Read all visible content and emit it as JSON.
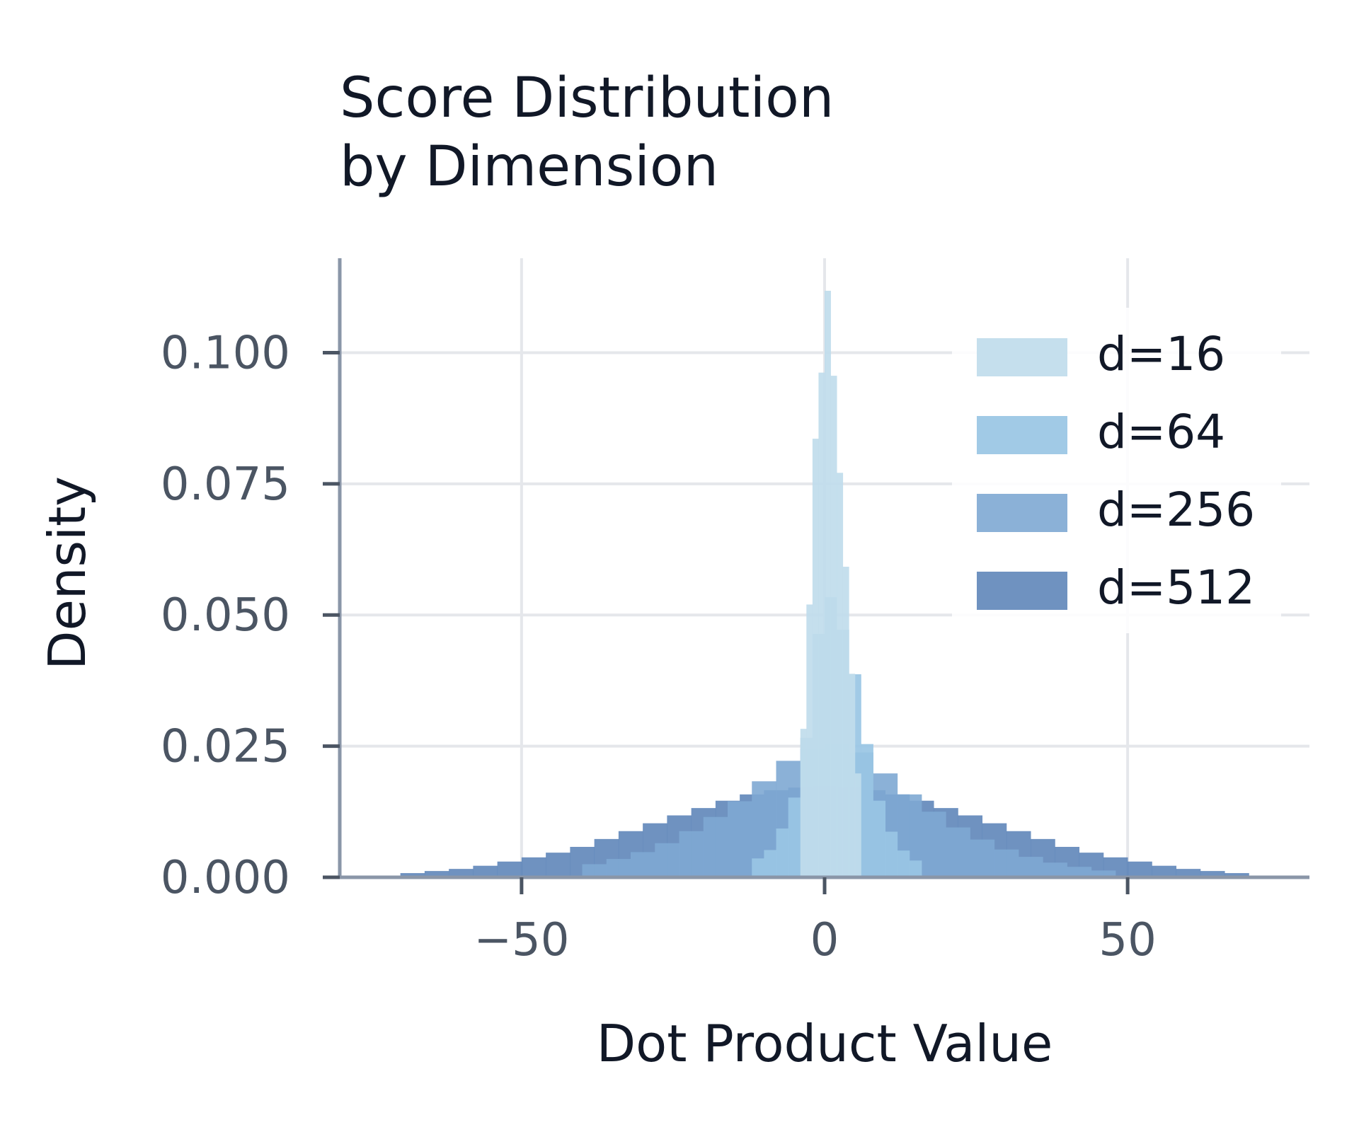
{
  "chart_data": {
    "type": "bar",
    "title": "Score Distribution\nby Dimension",
    "xlabel": "Dot Product Value",
    "ylabel": "Density",
    "xlim": [
      -80,
      80
    ],
    "ylim": [
      0,
      0.118
    ],
    "xticks": [
      -50,
      0,
      50
    ],
    "xtick_labels": [
      "−50",
      "0",
      "50"
    ],
    "yticks": [
      0,
      0.025,
      0.05,
      0.075,
      0.1
    ],
    "ytick_labels": [
      "0.000",
      "0.025",
      "0.050",
      "0.075",
      "0.100"
    ],
    "grid": true,
    "legend_position": "top-right",
    "series": [
      {
        "name": "d=512",
        "color": "#5b83b7",
        "opacity": 0.88,
        "bins": [
          {
            "x0": -70,
            "x1": -66,
            "density": 0.0008
          },
          {
            "x0": -66,
            "x1": -62,
            "density": 0.0012
          },
          {
            "x0": -62,
            "x1": -58,
            "density": 0.0016
          },
          {
            "x0": -58,
            "x1": -54,
            "density": 0.0022
          },
          {
            "x0": -54,
            "x1": -50,
            "density": 0.003
          },
          {
            "x0": -50,
            "x1": -46,
            "density": 0.0038
          },
          {
            "x0": -46,
            "x1": -42,
            "density": 0.0047
          },
          {
            "x0": -42,
            "x1": -38,
            "density": 0.0058
          },
          {
            "x0": -38,
            "x1": -34,
            "density": 0.0073
          },
          {
            "x0": -34,
            "x1": -30,
            "density": 0.0088
          },
          {
            "x0": -30,
            "x1": -26,
            "density": 0.0103
          },
          {
            "x0": -26,
            "x1": -22,
            "density": 0.0118
          },
          {
            "x0": -22,
            "x1": -18,
            "density": 0.0132
          },
          {
            "x0": -18,
            "x1": -14,
            "density": 0.0146
          },
          {
            "x0": -14,
            "x1": -10,
            "density": 0.0158
          },
          {
            "x0": -10,
            "x1": -6,
            "density": 0.0166
          },
          {
            "x0": -6,
            "x1": -2,
            "density": 0.0171
          },
          {
            "x0": -2,
            "x1": 2,
            "density": 0.0174
          },
          {
            "x0": 2,
            "x1": 6,
            "density": 0.0171
          },
          {
            "x0": 6,
            "x1": 10,
            "density": 0.0166
          },
          {
            "x0": 10,
            "x1": 14,
            "density": 0.0158
          },
          {
            "x0": 14,
            "x1": 18,
            "density": 0.0146
          },
          {
            "x0": 18,
            "x1": 22,
            "density": 0.0132
          },
          {
            "x0": 22,
            "x1": 26,
            "density": 0.0118
          },
          {
            "x0": 26,
            "x1": 30,
            "density": 0.0103
          },
          {
            "x0": 30,
            "x1": 34,
            "density": 0.0088
          },
          {
            "x0": 34,
            "x1": 38,
            "density": 0.0073
          },
          {
            "x0": 38,
            "x1": 42,
            "density": 0.0058
          },
          {
            "x0": 42,
            "x1": 46,
            "density": 0.0047
          },
          {
            "x0": 46,
            "x1": 50,
            "density": 0.0038
          },
          {
            "x0": 50,
            "x1": 54,
            "density": 0.003
          },
          {
            "x0": 54,
            "x1": 58,
            "density": 0.0022
          },
          {
            "x0": 58,
            "x1": 62,
            "density": 0.0016
          },
          {
            "x0": 62,
            "x1": 66,
            "density": 0.0012
          },
          {
            "x0": 66,
            "x1": 70,
            "density": 0.0008
          }
        ]
      },
      {
        "name": "d=256",
        "color": "#7ea9d3",
        "opacity": 0.9,
        "bins": [
          {
            "x0": -40,
            "x1": -36,
            "density": 0.0025
          },
          {
            "x0": -36,
            "x1": -32,
            "density": 0.0035
          },
          {
            "x0": -32,
            "x1": -28,
            "density": 0.0048
          },
          {
            "x0": -28,
            "x1": -24,
            "density": 0.0065
          },
          {
            "x0": -24,
            "x1": -20,
            "density": 0.0088
          },
          {
            "x0": -20,
            "x1": -16,
            "density": 0.0115
          },
          {
            "x0": -16,
            "x1": -12,
            "density": 0.0145
          },
          {
            "x0": -12,
            "x1": -8,
            "density": 0.0183
          },
          {
            "x0": -8,
            "x1": -4,
            "density": 0.0222
          },
          {
            "x0": -4,
            "x1": 0,
            "density": 0.0245
          },
          {
            "x0": 0,
            "x1": 4,
            "density": 0.0255
          },
          {
            "x0": 4,
            "x1": 8,
            "density": 0.0238
          },
          {
            "x0": 8,
            "x1": 12,
            "density": 0.0198
          },
          {
            "x0": 12,
            "x1": 16,
            "density": 0.0158
          },
          {
            "x0": 16,
            "x1": 20,
            "density": 0.0125
          },
          {
            "x0": 20,
            "x1": 24,
            "density": 0.0095
          },
          {
            "x0": 24,
            "x1": 28,
            "density": 0.0072
          },
          {
            "x0": 28,
            "x1": 32,
            "density": 0.0053
          },
          {
            "x0": 32,
            "x1": 36,
            "density": 0.0039
          },
          {
            "x0": 36,
            "x1": 40,
            "density": 0.0028
          },
          {
            "x0": 40,
            "x1": 44,
            "density": 0.002
          },
          {
            "x0": 44,
            "x1": 48,
            "density": 0.0013
          }
        ]
      },
      {
        "name": "d=64",
        "color": "#99c5e4",
        "opacity": 0.92,
        "bins": [
          {
            "x0": -12,
            "x1": -10,
            "density": 0.0036
          },
          {
            "x0": -10,
            "x1": -8,
            "density": 0.0052
          },
          {
            "x0": -8,
            "x1": -6,
            "density": 0.0093
          },
          {
            "x0": -6,
            "x1": -4,
            "density": 0.0152
          },
          {
            "x0": -4,
            "x1": -2,
            "density": 0.0266
          },
          {
            "x0": -2,
            "x1": 0,
            "density": 0.0464
          },
          {
            "x0": 0,
            "x1": 2,
            "density": 0.0534
          },
          {
            "x0": 2,
            "x1": 4,
            "density": 0.0472
          },
          {
            "x0": 4,
            "x1": 6,
            "density": 0.0387
          },
          {
            "x0": 6,
            "x1": 8,
            "density": 0.0254
          },
          {
            "x0": 8,
            "x1": 10,
            "density": 0.0146
          },
          {
            "x0": 10,
            "x1": 12,
            "density": 0.0087
          },
          {
            "x0": 12,
            "x1": 14,
            "density": 0.0051
          },
          {
            "x0": 14,
            "x1": 16,
            "density": 0.0032
          }
        ]
      },
      {
        "name": "d=16",
        "color": "#c0dceb",
        "opacity": 0.92,
        "bins": [
          {
            "x0": -4,
            "x1": -3,
            "density": 0.0283
          },
          {
            "x0": -3,
            "x1": -2,
            "density": 0.052
          },
          {
            "x0": -2,
            "x1": -1,
            "density": 0.0836
          },
          {
            "x0": -1,
            "x1": 0,
            "density": 0.0962
          },
          {
            "x0": 0,
            "x1": 1,
            "density": 0.1118
          },
          {
            "x0": 1,
            "x1": 2,
            "density": 0.0956
          },
          {
            "x0": 2,
            "x1": 3,
            "density": 0.0771
          },
          {
            "x0": 3,
            "x1": 4,
            "density": 0.0592
          },
          {
            "x0": 4,
            "x1": 5,
            "density": 0.0388
          },
          {
            "x0": 5,
            "x1": 6,
            "density": 0.0198
          }
        ]
      }
    ],
    "legend_order": [
      "d=16",
      "d=64",
      "d=256",
      "d=512"
    ]
  }
}
